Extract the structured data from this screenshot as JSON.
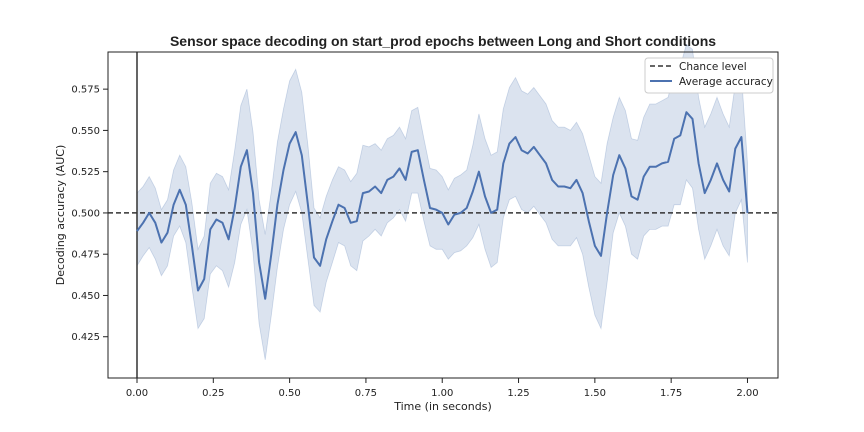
{
  "chart_data": {
    "type": "line",
    "title": "Sensor space decoding on start_prod epochs between Long and Short conditions",
    "xlabel": "Time (in seconds)",
    "ylabel": "Decoding accuracy (AUC)",
    "xlim": [
      -0.095,
      2.1
    ],
    "ylim": [
      0.4,
      0.5975
    ],
    "xticks": [
      0.0,
      0.25,
      0.5,
      0.75,
      1.0,
      1.25,
      1.5,
      1.75,
      2.0
    ],
    "xtick_labels": [
      "0.00",
      "0.25",
      "0.50",
      "0.75",
      "1.00",
      "1.25",
      "1.50",
      "1.75",
      "2.00"
    ],
    "yticks": [
      0.425,
      0.45,
      0.475,
      0.5,
      0.525,
      0.55,
      0.575
    ],
    "ytick_labels": [
      "0.425",
      "0.450",
      "0.475",
      "0.500",
      "0.525",
      "0.550",
      "0.575"
    ],
    "legend_position": "top-right",
    "chance_level": 0.5,
    "event_line_x": 0.0,
    "colors": {
      "mean": "#4c72b0",
      "band": "#4c72b0",
      "chance": "#333333",
      "event_line": "#333333"
    },
    "series": [
      {
        "name": "Average accuracy",
        "x": [
          0.0,
          0.02,
          0.04,
          0.06,
          0.08,
          0.1,
          0.12,
          0.14,
          0.16,
          0.18,
          0.2,
          0.22,
          0.24,
          0.26,
          0.28,
          0.3,
          0.32,
          0.34,
          0.36,
          0.38,
          0.4,
          0.42,
          0.44,
          0.46,
          0.48,
          0.5,
          0.52,
          0.54,
          0.56,
          0.58,
          0.6,
          0.62,
          0.64,
          0.66,
          0.68,
          0.7,
          0.72,
          0.74,
          0.76,
          0.78,
          0.8,
          0.82,
          0.84,
          0.86,
          0.88,
          0.9,
          0.92,
          0.94,
          0.96,
          0.98,
          1.0,
          1.02,
          1.04,
          1.06,
          1.08,
          1.1,
          1.12,
          1.14,
          1.16,
          1.18,
          1.2,
          1.22,
          1.24,
          1.26,
          1.28,
          1.3,
          1.32,
          1.34,
          1.36,
          1.38,
          1.4,
          1.42,
          1.44,
          1.46,
          1.48,
          1.5,
          1.52,
          1.54,
          1.56,
          1.58,
          1.6,
          1.62,
          1.64,
          1.66,
          1.68,
          1.7,
          1.72,
          1.74,
          1.76,
          1.78,
          1.8,
          1.82,
          1.84,
          1.86,
          1.88,
          1.9,
          1.92,
          1.94,
          1.96,
          1.98,
          2.0
        ],
        "values": [
          0.489,
          0.494,
          0.5,
          0.494,
          0.482,
          0.488,
          0.505,
          0.514,
          0.505,
          0.48,
          0.453,
          0.46,
          0.49,
          0.496,
          0.494,
          0.484,
          0.503,
          0.528,
          0.538,
          0.512,
          0.47,
          0.448,
          0.475,
          0.505,
          0.526,
          0.542,
          0.549,
          0.535,
          0.505,
          0.473,
          0.468,
          0.484,
          0.495,
          0.505,
          0.503,
          0.494,
          0.495,
          0.512,
          0.513,
          0.516,
          0.512,
          0.52,
          0.522,
          0.527,
          0.52,
          0.537,
          0.538,
          0.52,
          0.503,
          0.502,
          0.5,
          0.493,
          0.499,
          0.5,
          0.503,
          0.513,
          0.525,
          0.51,
          0.5,
          0.502,
          0.53,
          0.542,
          0.546,
          0.538,
          0.536,
          0.54,
          0.535,
          0.53,
          0.52,
          0.516,
          0.516,
          0.515,
          0.52,
          0.512,
          0.495,
          0.48,
          0.474,
          0.5,
          0.523,
          0.535,
          0.527,
          0.51,
          0.508,
          0.522,
          0.528,
          0.528,
          0.53,
          0.531,
          0.545,
          0.547,
          0.561,
          0.557,
          0.53,
          0.512,
          0.52,
          0.53,
          0.52,
          0.513,
          0.539,
          0.546,
          0.5
        ]
      },
      {
        "name": "Chance level",
        "values": [
          0.5
        ]
      }
    ],
    "band": {
      "x": [
        0.0,
        0.02,
        0.04,
        0.06,
        0.08,
        0.1,
        0.12,
        0.14,
        0.16,
        0.18,
        0.2,
        0.22,
        0.24,
        0.26,
        0.28,
        0.3,
        0.32,
        0.34,
        0.36,
        0.38,
        0.4,
        0.42,
        0.44,
        0.46,
        0.48,
        0.5,
        0.52,
        0.54,
        0.56,
        0.58,
        0.6,
        0.62,
        0.64,
        0.66,
        0.68,
        0.7,
        0.72,
        0.74,
        0.76,
        0.78,
        0.8,
        0.82,
        0.84,
        0.86,
        0.88,
        0.9,
        0.92,
        0.94,
        0.96,
        0.98,
        1.0,
        1.02,
        1.04,
        1.06,
        1.08,
        1.1,
        1.12,
        1.14,
        1.16,
        1.18,
        1.2,
        1.22,
        1.24,
        1.26,
        1.28,
        1.3,
        1.32,
        1.34,
        1.36,
        1.38,
        1.4,
        1.42,
        1.44,
        1.46,
        1.48,
        1.5,
        1.52,
        1.54,
        1.56,
        1.58,
        1.6,
        1.62,
        1.64,
        1.66,
        1.68,
        1.7,
        1.72,
        1.74,
        1.76,
        1.78,
        1.8,
        1.82,
        1.84,
        1.86,
        1.88,
        1.9,
        1.92,
        1.94,
        1.96,
        1.98,
        2.0
      ],
      "lower": [
        0.468,
        0.474,
        0.479,
        0.472,
        0.462,
        0.468,
        0.486,
        0.492,
        0.482,
        0.455,
        0.43,
        0.436,
        0.463,
        0.468,
        0.465,
        0.455,
        0.47,
        0.493,
        0.502,
        0.476,
        0.433,
        0.411,
        0.438,
        0.467,
        0.49,
        0.505,
        0.513,
        0.5,
        0.472,
        0.444,
        0.44,
        0.458,
        0.47,
        0.482,
        0.48,
        0.468,
        0.465,
        0.483,
        0.486,
        0.49,
        0.486,
        0.494,
        0.497,
        0.502,
        0.495,
        0.512,
        0.512,
        0.495,
        0.48,
        0.478,
        0.478,
        0.472,
        0.476,
        0.477,
        0.48,
        0.485,
        0.493,
        0.478,
        0.467,
        0.47,
        0.497,
        0.508,
        0.51,
        0.502,
        0.5,
        0.504,
        0.499,
        0.494,
        0.484,
        0.48,
        0.48,
        0.48,
        0.485,
        0.475,
        0.455,
        0.438,
        0.43,
        0.458,
        0.488,
        0.5,
        0.492,
        0.475,
        0.472,
        0.486,
        0.49,
        0.49,
        0.492,
        0.492,
        0.505,
        0.505,
        0.52,
        0.515,
        0.49,
        0.472,
        0.48,
        0.49,
        0.48,
        0.474,
        0.5,
        0.508,
        0.47
      ],
      "upper": [
        0.512,
        0.516,
        0.522,
        0.515,
        0.502,
        0.508,
        0.526,
        0.535,
        0.528,
        0.506,
        0.478,
        0.486,
        0.518,
        0.524,
        0.522,
        0.514,
        0.538,
        0.565,
        0.575,
        0.549,
        0.508,
        0.487,
        0.513,
        0.543,
        0.563,
        0.58,
        0.587,
        0.573,
        0.541,
        0.503,
        0.497,
        0.51,
        0.52,
        0.528,
        0.526,
        0.519,
        0.524,
        0.541,
        0.54,
        0.542,
        0.538,
        0.545,
        0.547,
        0.552,
        0.545,
        0.562,
        0.564,
        0.545,
        0.527,
        0.526,
        0.522,
        0.514,
        0.521,
        0.523,
        0.526,
        0.541,
        0.56,
        0.545,
        0.535,
        0.537,
        0.563,
        0.576,
        0.582,
        0.574,
        0.572,
        0.576,
        0.571,
        0.566,
        0.556,
        0.552,
        0.552,
        0.55,
        0.555,
        0.548,
        0.535,
        0.522,
        0.518,
        0.542,
        0.558,
        0.57,
        0.562,
        0.545,
        0.544,
        0.558,
        0.566,
        0.566,
        0.568,
        0.57,
        0.585,
        0.589,
        0.602,
        0.599,
        0.57,
        0.552,
        0.56,
        0.57,
        0.56,
        0.552,
        0.578,
        0.584,
        0.53
      ]
    }
  }
}
